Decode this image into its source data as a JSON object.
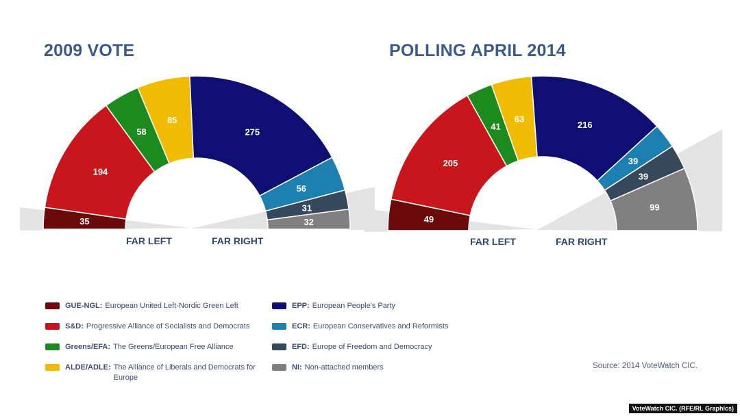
{
  "chart_data": [
    {
      "type": "pie",
      "subtype": "half-donut (parliament)",
      "title": "2009 VOTE",
      "categories": [
        "GUE-NGL",
        "S&D",
        "Greens/EFA",
        "ALDE/ADLE",
        "EPP",
        "ECR",
        "EFD",
        "NI"
      ],
      "values": [
        35,
        194,
        58,
        85,
        275,
        56,
        31,
        32
      ],
      "side_labels": [
        "FAR LEFT",
        "FAR RIGHT"
      ]
    },
    {
      "type": "pie",
      "subtype": "half-donut (parliament)",
      "title": "POLLING APRIL 2014",
      "categories": [
        "GUE-NGL",
        "S&D",
        "Greens/EFA",
        "ALDE/ADLE",
        "EPP",
        "ECR",
        "EFD",
        "NI"
      ],
      "values": [
        49,
        205,
        41,
        63,
        216,
        39,
        39,
        99
      ],
      "side_labels": [
        "FAR LEFT",
        "FAR RIGHT"
      ]
    }
  ],
  "colors": {
    "GUE-NGL": "#6b0a0a",
    "S&D": "#c8161c",
    "Greens/EFA": "#1d8a1d",
    "ALDE/ADLE": "#f0bb00",
    "EPP": "#0f0f73",
    "ECR": "#1b7fb0",
    "EFD": "#35485c",
    "NI": "#808080",
    "title": "#3b5a8a"
  },
  "legend": [
    {
      "abbr": "GUE-NGL:",
      "desc": "European United Left-Nordic Green Left",
      "color": "#6b0a0a"
    },
    {
      "abbr": "S&D:",
      "desc": "Progressive Alliance of Socialists and Democrats",
      "color": "#c8161c"
    },
    {
      "abbr": "Greens/EFA:",
      "desc": "The Greens/European Free Alliance",
      "color": "#1d8a1d"
    },
    {
      "abbr": "ALDE/ADLE:",
      "desc": "The Alliance of Liberals and Democrats for Europe",
      "color": "#f0bb00"
    },
    {
      "abbr": "EPP:",
      "desc": "European People's Party",
      "color": "#0f0f73"
    },
    {
      "abbr": "ECR:",
      "desc": "European Conservatives and Reformists",
      "color": "#1b7fb0"
    },
    {
      "abbr": "EFD:",
      "desc": "Europe of Freedom and Democracy",
      "color": "#35485c"
    },
    {
      "abbr": "NI:",
      "desc": "Non-attached members",
      "color": "#808080"
    }
  ],
  "source": "Source: 2014 VoteWatch CIC.",
  "credit": "VoteWatch CIC. (RFE/RL Graphics)"
}
